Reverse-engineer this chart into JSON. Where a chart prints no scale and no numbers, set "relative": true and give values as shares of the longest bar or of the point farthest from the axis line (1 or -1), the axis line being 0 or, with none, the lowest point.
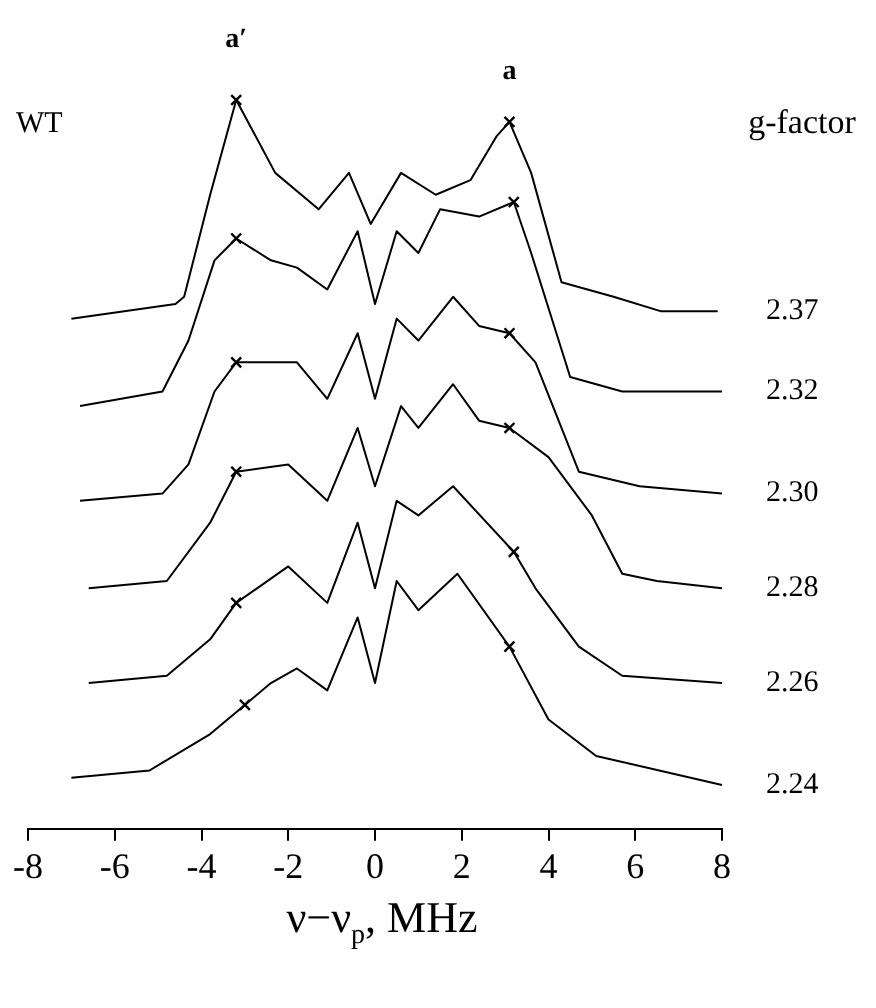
{
  "chart_data": {
    "type": "line",
    "relative": true,
    "xlabel": "ν−ν$_{p}$, MHz",
    "legend_title": "g-factor",
    "grid": false,
    "xlim": [
      -8,
      8
    ],
    "xticks": [
      -8,
      -6,
      -4,
      -2,
      0,
      2,
      4,
      6,
      8
    ],
    "annotations": [
      "WT",
      "a′",
      "a"
    ],
    "series": [
      {
        "name": "2.37",
        "color": "#000000",
        "x": [
          -7.0,
          -4.6,
          -4.4,
          -3.8,
          -3.2,
          -2.3,
          -1.3,
          -0.6,
          -0.1,
          0.6,
          1.4,
          2.2,
          2.8,
          3.1,
          3.6,
          4.3,
          5.5,
          6.6,
          7.9
        ],
        "values": [
          0.7,
          0.72,
          0.73,
          0.87,
          1.0,
          0.9,
          0.85,
          0.9,
          0.83,
          0.9,
          0.87,
          0.89,
          0.95,
          0.97,
          0.9,
          0.75,
          0.73,
          0.71,
          0.71
        ]
      },
      {
        "name": "2.32",
        "color": "#000000",
        "x": [
          -6.8,
          -4.9,
          -4.3,
          -3.7,
          -3.2,
          -2.4,
          -1.8,
          -1.1,
          -0.4,
          0.0,
          0.5,
          1.0,
          1.5,
          2.4,
          3.2,
          3.6,
          4.5,
          5.7,
          8.0
        ],
        "values": [
          0.58,
          0.6,
          0.67,
          0.78,
          0.81,
          0.78,
          0.77,
          0.74,
          0.82,
          0.72,
          0.82,
          0.79,
          0.85,
          0.84,
          0.86,
          0.79,
          0.62,
          0.6,
          0.6
        ]
      },
      {
        "name": "2.30",
        "color": "#000000",
        "x": [
          -6.8,
          -4.9,
          -4.3,
          -3.7,
          -3.2,
          -2.4,
          -1.8,
          -1.1,
          -0.4,
          0.0,
          0.5,
          1.0,
          1.8,
          2.4,
          3.1,
          3.7,
          4.7,
          6.1,
          8.0
        ],
        "values": [
          0.45,
          0.46,
          0.5,
          0.6,
          0.64,
          0.64,
          0.64,
          0.59,
          0.68,
          0.59,
          0.7,
          0.67,
          0.73,
          0.69,
          0.68,
          0.64,
          0.49,
          0.47,
          0.46
        ]
      },
      {
        "name": "2.28",
        "color": "#000000",
        "x": [
          -6.6,
          -4.8,
          -3.8,
          -3.2,
          -2.0,
          -1.1,
          -0.4,
          0.0,
          0.6,
          1.0,
          1.8,
          2.4,
          3.1,
          4.0,
          5.0,
          5.7,
          6.5,
          8.0
        ],
        "values": [
          0.33,
          0.34,
          0.42,
          0.49,
          0.5,
          0.45,
          0.55,
          0.47,
          0.58,
          0.55,
          0.61,
          0.56,
          0.55,
          0.51,
          0.43,
          0.35,
          0.34,
          0.33
        ]
      },
      {
        "name": "2.26",
        "color": "#000000",
        "x": [
          -6.6,
          -4.8,
          -3.8,
          -3.2,
          -2.0,
          -1.1,
          -0.4,
          0.0,
          0.5,
          1.0,
          1.8,
          3.2,
          3.7,
          4.7,
          5.7,
          8.0
        ],
        "values": [
          0.2,
          0.21,
          0.26,
          0.31,
          0.36,
          0.31,
          0.42,
          0.33,
          0.45,
          0.43,
          0.47,
          0.38,
          0.33,
          0.25,
          0.21,
          0.2
        ]
      },
      {
        "name": "2.24",
        "color": "#000000",
        "x": [
          -7.0,
          -5.2,
          -3.8,
          -3.0,
          -2.4,
          -1.8,
          -1.1,
          -0.4,
          0.0,
          0.5,
          1.0,
          1.9,
          3.1,
          4.0,
          5.1,
          8.0
        ],
        "values": [
          0.07,
          0.08,
          0.13,
          0.17,
          0.2,
          0.22,
          0.19,
          0.29,
          0.2,
          0.34,
          0.3,
          0.35,
          0.25,
          0.15,
          0.1,
          0.06
        ]
      },
      {
        "type": "scatter",
        "marker": "cross",
        "color": "#000000",
        "x": [
          -3.2,
          3.1,
          -3.2,
          3.2,
          -3.2,
          3.1,
          -3.2,
          3.1,
          -3.2,
          3.2,
          -3.0,
          3.1
        ],
        "values": [
          1.0,
          0.97,
          0.81,
          0.86,
          0.64,
          0.68,
          0.49,
          0.55,
          0.31,
          0.38,
          0.17,
          0.25
        ]
      }
    ]
  }
}
